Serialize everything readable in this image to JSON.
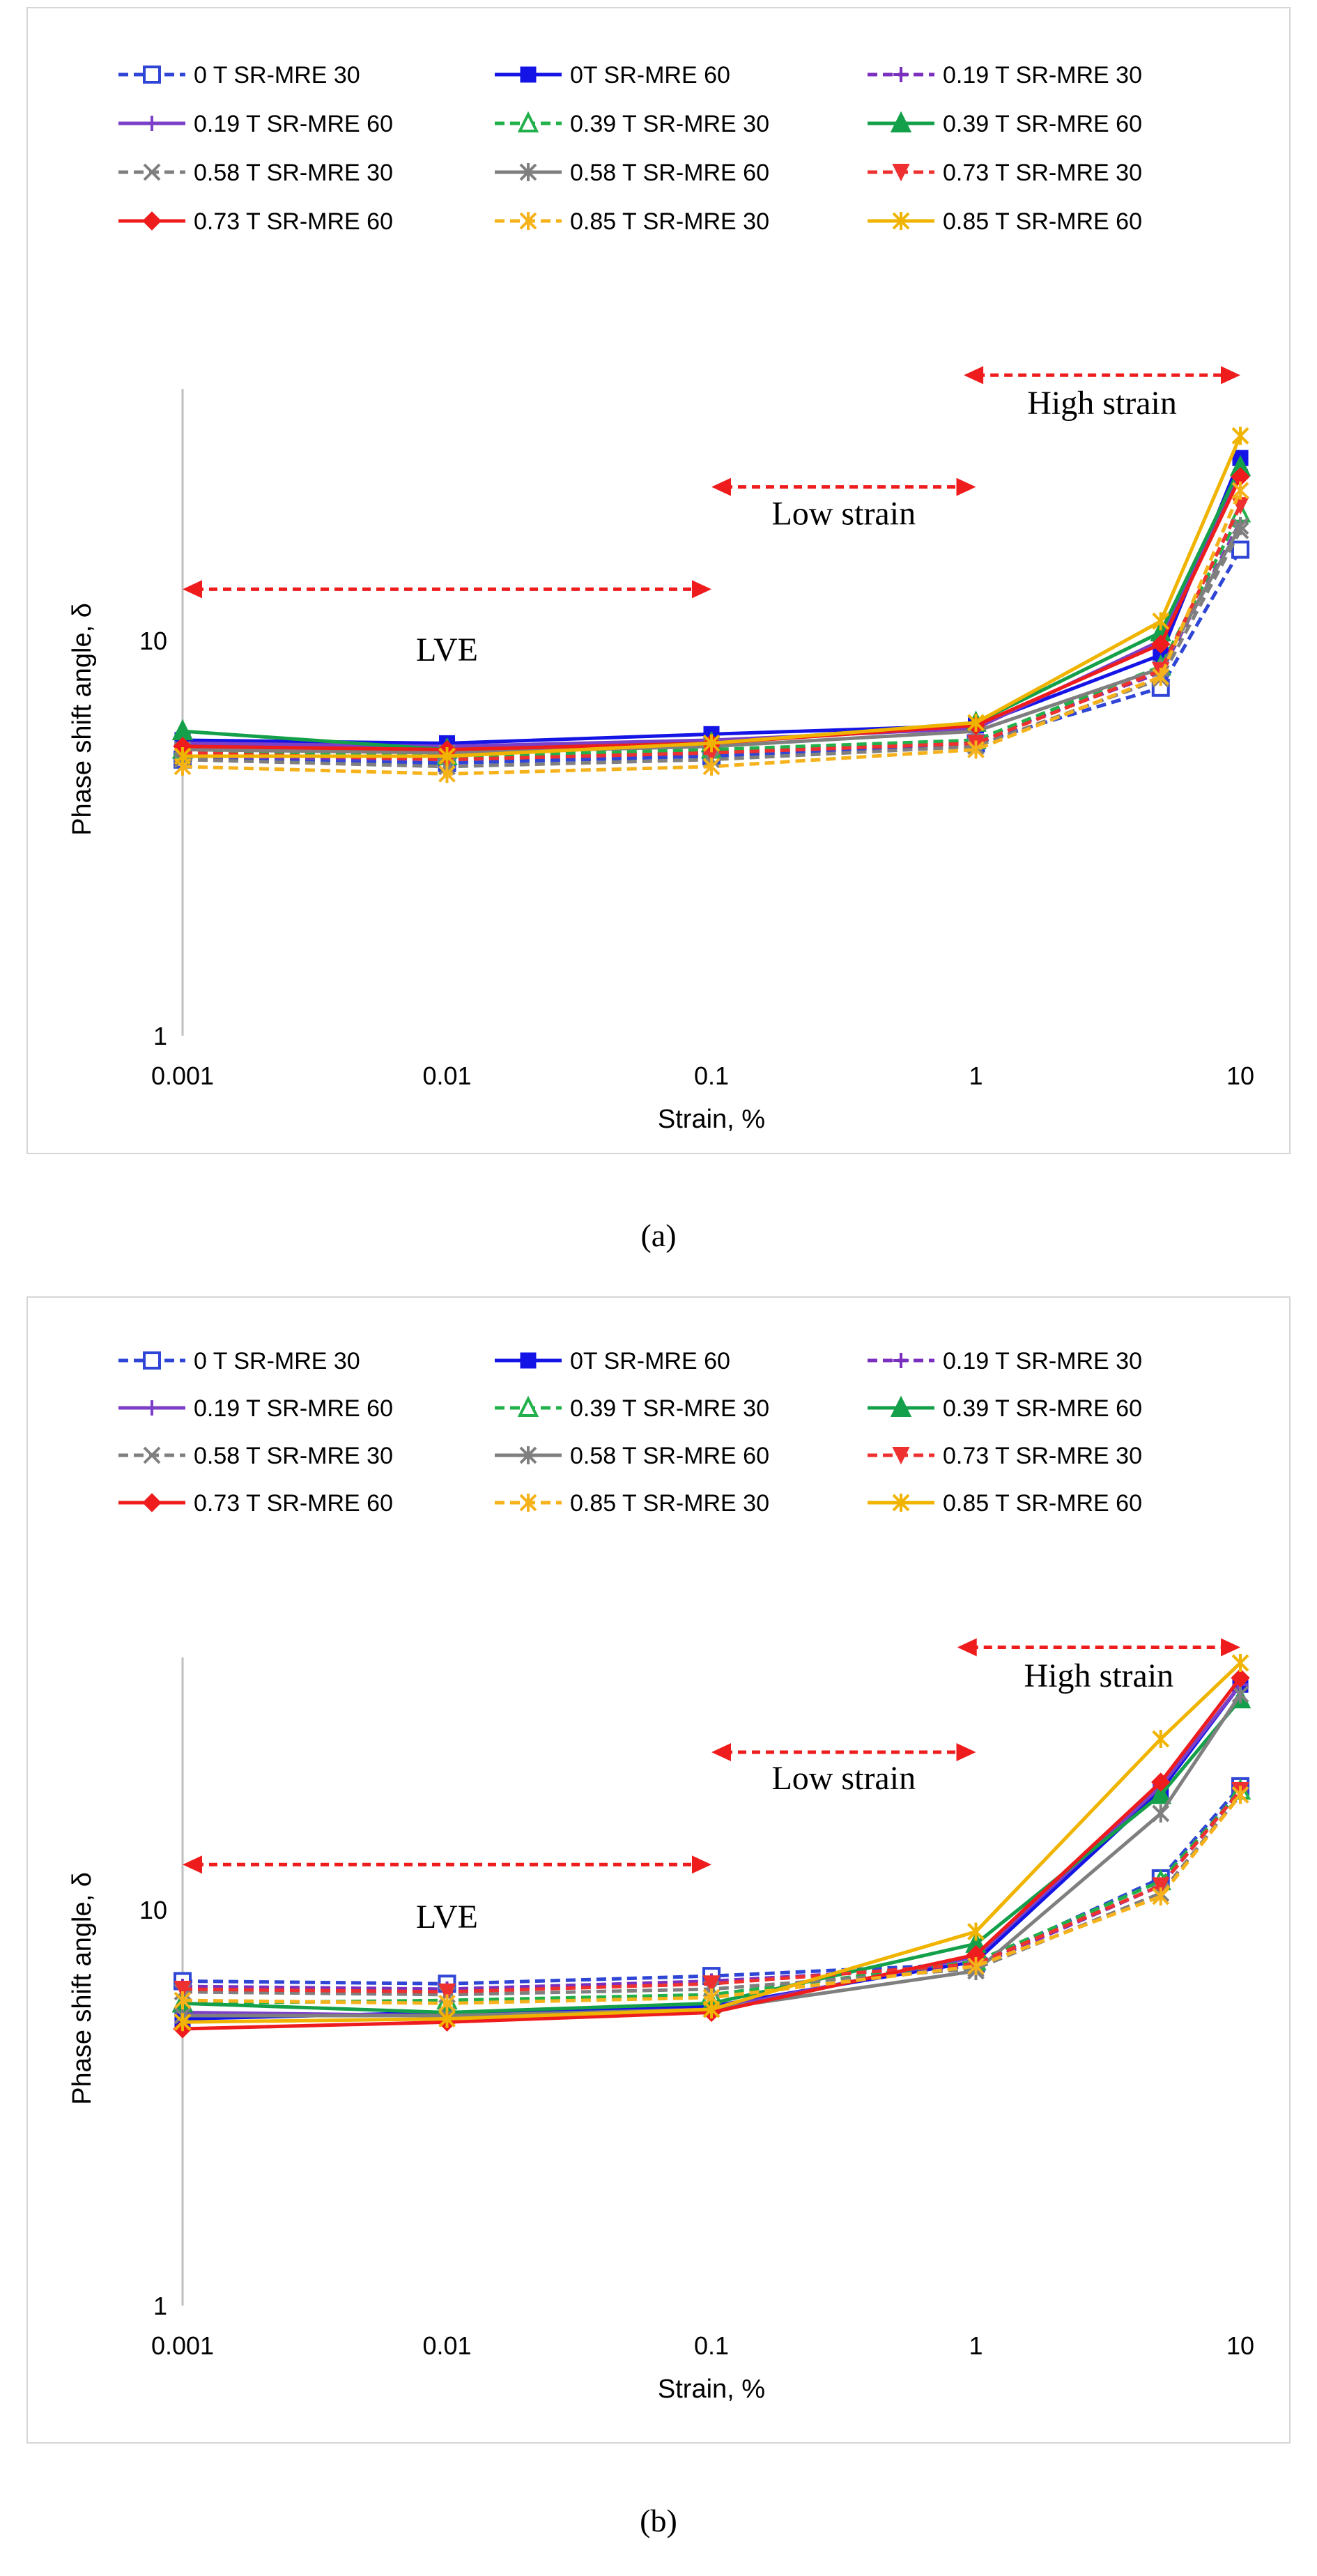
{
  "legend_order": [
    "0 T SR-MRE 30",
    "0T SR-MRE 60",
    "0.19 T SR-MRE 30",
    "0.19 T SR-MRE 60",
    "0.39 T SR-MRE 30",
    "0.39 T SR-MRE 60",
    "0.58 T SR-MRE 30",
    "0.58 T SR-MRE 60",
    "0.73 T SR-MRE 30",
    "0.73 T SR-MRE 60",
    "0.85 T SR-MRE 30",
    "0.85 T SR-MRE 60"
  ],
  "series_style": {
    "0 T SR-MRE 30": {
      "color": "#2f45d6",
      "dash": true,
      "marker": "square-open"
    },
    "0T SR-MRE 60": {
      "color": "#1414e6",
      "dash": false,
      "marker": "square"
    },
    "0.19 T SR-MRE 30": {
      "color": "#7b2fbe",
      "dash": true,
      "marker": "plus"
    },
    "0.19 T SR-MRE 60": {
      "color": "#7b3fc8",
      "dash": false,
      "marker": "plus"
    },
    "0.39 T SR-MRE 30": {
      "color": "#22b04b",
      "dash": true,
      "marker": "triangle-open"
    },
    "0.39 T SR-MRE 60": {
      "color": "#14a04a",
      "dash": false,
      "marker": "triangle"
    },
    "0.58 T SR-MRE 30": {
      "color": "#7f7f7f",
      "dash": true,
      "marker": "x"
    },
    "0.58 T SR-MRE 60": {
      "color": "#7f7f7f",
      "dash": false,
      "marker": "asterisk"
    },
    "0.73 T SR-MRE 30": {
      "color": "#ee3030",
      "dash": true,
      "marker": "tri-down"
    },
    "0.73 T SR-MRE 60": {
      "color": "#ee1c1c",
      "dash": false,
      "marker": "diamond"
    },
    "0.85 T SR-MRE 30": {
      "color": "#f6b21a",
      "dash": true,
      "marker": "asterisk"
    },
    "0.85 T SR-MRE 60": {
      "color": "#f0b400",
      "dash": false,
      "marker": "asterisk"
    }
  },
  "region_color": "#ee1c1c",
  "chart_data": [
    {
      "panel": "a",
      "caption": "(a)",
      "type": "line",
      "xlabel": "Strain, %",
      "ylabel": "Phase shift angle, δ",
      "x_scale": "log",
      "y_scale": "log",
      "xlim": [
        0.001,
        10
      ],
      "ylim": [
        1,
        40
      ],
      "x_ticks": [
        0.001,
        0.01,
        0.1,
        1,
        10
      ],
      "x_tick_labels": [
        "0.001",
        "0.01",
        "0.1",
        "1",
        "10"
      ],
      "y_ticks": [
        1,
        10
      ],
      "y_tick_labels": [
        "1",
        "10"
      ],
      "grid": false,
      "legend_position": "top",
      "x": [
        0.001,
        0.01,
        0.1,
        1,
        5,
        10
      ],
      "annotations": [
        {
          "text": "LVE",
          "from": 0.001,
          "to": 0.1,
          "y_arrow": 13.5,
          "y_text": 9.5
        },
        {
          "text": "Low strain",
          "from": 0.1,
          "to": 1,
          "y_arrow": 24.5,
          "y_text": 21
        },
        {
          "text": "High strain",
          "from": 0.9,
          "to": 10,
          "y_arrow": 47,
          "y_text": 40
        }
      ],
      "series": [
        {
          "name": "0 T SR-MRE 30",
          "values": [
            5.0,
            4.9,
            5.1,
            5.5,
            7.6,
            17.0
          ]
        },
        {
          "name": "0T SR-MRE 60",
          "values": [
            5.6,
            5.5,
            5.8,
            6.1,
            9.2,
            29.0
          ]
        },
        {
          "name": "0.19 T SR-MRE 30",
          "values": [
            5.1,
            5.0,
            5.2,
            5.6,
            8.3,
            20.0
          ]
        },
        {
          "name": "0.19 T SR-MRE 60",
          "values": [
            5.5,
            5.4,
            5.6,
            6.0,
            10.0,
            27.0
          ]
        },
        {
          "name": "0.39 T SR-MRE 30",
          "values": [
            5.3,
            5.1,
            5.3,
            5.6,
            8.6,
            21.0
          ]
        },
        {
          "name": "0.39 T SR-MRE 60",
          "values": [
            5.9,
            5.3,
            5.5,
            6.2,
            10.5,
            27.5
          ]
        },
        {
          "name": "0.58 T SR-MRE 30",
          "values": [
            5.0,
            4.8,
            5.0,
            5.4,
            8.0,
            19.0
          ]
        },
        {
          "name": "0.58 T SR-MRE 60",
          "values": [
            5.3,
            5.2,
            5.4,
            5.9,
            8.5,
            19.5
          ]
        },
        {
          "name": "0.73 T SR-MRE 30",
          "values": [
            5.2,
            5.0,
            5.2,
            5.5,
            8.4,
            22.0
          ]
        },
        {
          "name": "0.73 T SR-MRE 60",
          "values": [
            5.4,
            5.3,
            5.5,
            6.1,
            9.8,
            26.0
          ]
        },
        {
          "name": "0.85 T SR-MRE 30",
          "values": [
            4.8,
            4.6,
            4.8,
            5.3,
            8.1,
            24.0
          ]
        },
        {
          "name": "0.85 T SR-MRE 60",
          "values": [
            5.1,
            5.1,
            5.5,
            6.2,
            11.2,
            33.0
          ]
        }
      ]
    },
    {
      "panel": "b",
      "caption": "(b)",
      "type": "line",
      "xlabel": "Strain, %",
      "ylabel": "Phase shift angle, δ",
      "x_scale": "log",
      "y_scale": "log",
      "xlim": [
        0.001,
        10
      ],
      "ylim": [
        1,
        40
      ],
      "x_ticks": [
        0.001,
        0.01,
        0.1,
        1,
        10
      ],
      "x_tick_labels": [
        "0.001",
        "0.01",
        "0.1",
        "1",
        "10"
      ],
      "y_ticks": [
        1,
        10
      ],
      "y_tick_labels": [
        "1",
        "10"
      ],
      "grid": false,
      "legend_position": "top",
      "x": [
        0.001,
        0.01,
        0.1,
        1,
        5,
        10
      ],
      "annotations": [
        {
          "text": "LVE",
          "from": 0.001,
          "to": 0.1,
          "y_arrow": 13,
          "y_text": 9.6
        },
        {
          "text": "Low strain",
          "from": 0.1,
          "to": 1,
          "y_arrow": 25,
          "y_text": 21.5
        },
        {
          "text": "High strain",
          "from": 0.85,
          "to": 10,
          "y_arrow": 46,
          "y_text": 39
        }
      ],
      "series": [
        {
          "name": "0 T SR-MRE 30",
          "values": [
            6.6,
            6.5,
            6.8,
            7.3,
            12.0,
            20.5
          ]
        },
        {
          "name": "0T SR-MRE 60",
          "values": [
            5.3,
            5.5,
            5.7,
            7.4,
            20.0,
            37.0
          ]
        },
        {
          "name": "0.19 T SR-MRE 30",
          "values": [
            6.4,
            6.3,
            6.6,
            7.2,
            11.5,
            20.0
          ]
        },
        {
          "name": "0.19 T SR-MRE 60",
          "values": [
            5.5,
            5.4,
            5.6,
            7.6,
            20.5,
            37.0
          ]
        },
        {
          "name": "0.39 T SR-MRE 30",
          "values": [
            5.8,
            5.9,
            6.1,
            7.4,
            11.8,
            20.0
          ]
        },
        {
          "name": "0.39 T SR-MRE 60",
          "values": [
            5.8,
            5.5,
            5.8,
            8.2,
            19.5,
            34.0
          ]
        },
        {
          "name": "0.58 T SR-MRE 30",
          "values": [
            6.2,
            6.1,
            6.3,
            7.1,
            11.0,
            19.5
          ]
        },
        {
          "name": "0.58 T SR-MRE 60",
          "values": [
            5.4,
            5.4,
            5.6,
            7.0,
            17.5,
            35.0
          ]
        },
        {
          "name": "0.73 T SR-MRE 30",
          "values": [
            6.3,
            6.2,
            6.5,
            7.3,
            11.5,
            20.0
          ]
        },
        {
          "name": "0.73 T SR-MRE 60",
          "values": [
            5.0,
            5.2,
            5.5,
            7.7,
            21.0,
            38.5
          ]
        },
        {
          "name": "0.85 T SR-MRE 30",
          "values": [
            5.9,
            5.8,
            6.0,
            7.2,
            10.8,
            19.5
          ]
        },
        {
          "name": "0.85 T SR-MRE 60",
          "values": [
            5.2,
            5.3,
            5.6,
            8.8,
            27.0,
            42.0
          ]
        }
      ]
    }
  ]
}
